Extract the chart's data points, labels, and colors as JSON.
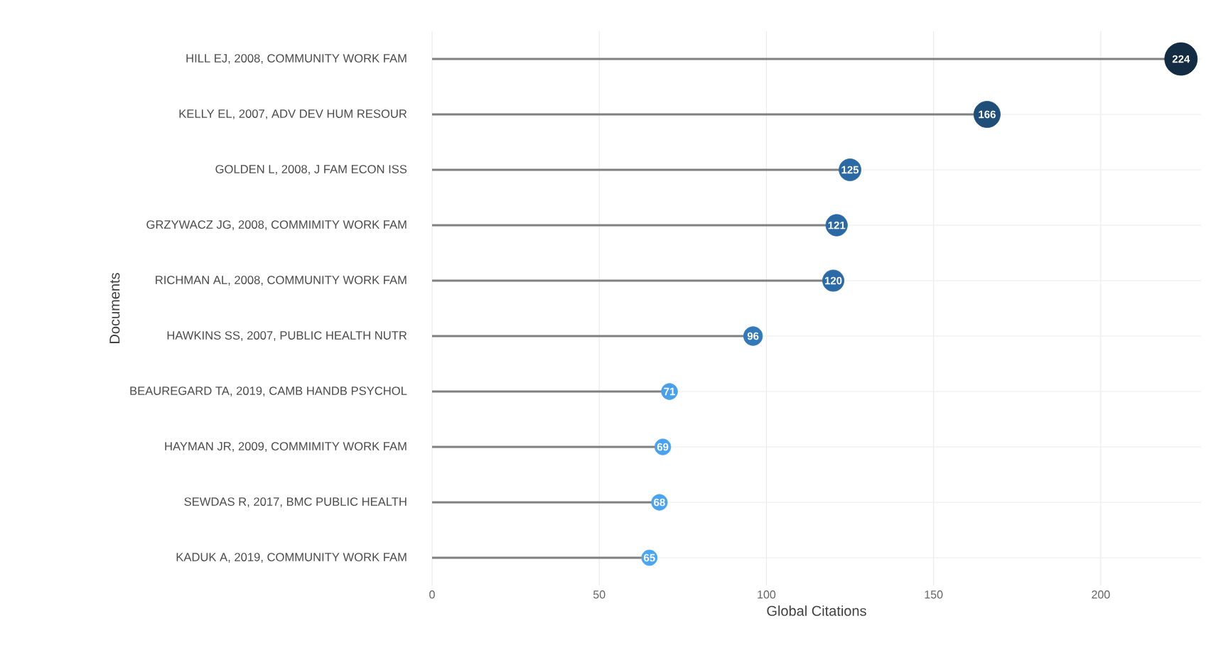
{
  "chart_data": {
    "type": "lollipop",
    "orientation": "horizontal",
    "xlabel": "Global Citations",
    "ylabel": "Documents",
    "categories": [
      "HILL EJ, 2008, COMMUNITY WORK FAM",
      "KELLY EL, 2007, ADV DEV HUM RESOUR",
      "GOLDEN L, 2008, J FAM ECON ISS",
      "GRZYWACZ JG, 2008, COMMIMITY WORK FAM",
      "RICHMAN AL, 2008, COMMUNITY WORK FAM",
      "HAWKINS SS, 2007, PUBLIC HEALTH NUTR",
      "BEAUREGARD TA, 2019, CAMB HANDB PSYCHOL",
      "HAYMAN JR, 2009, COMMIMITY WORK FAM",
      "SEWDAS R, 2017, BMC PUBLIC HEALTH",
      "KADUK A, 2019, COMMUNITY WORK FAM"
    ],
    "values": [
      224,
      166,
      125,
      121,
      120,
      96,
      71,
      69,
      68,
      65
    ],
    "colors": [
      "#132b43",
      "#1f4e79",
      "#2a69a4",
      "#2a69a4",
      "#2b6aa5",
      "#3378b8",
      "#4aa0e8",
      "#4aa2ec",
      "#4ba3ee",
      "#4ca5f0"
    ],
    "xlim": [
      0,
      230
    ],
    "xticks": [
      0,
      50,
      100,
      150,
      200
    ],
    "grid": true,
    "marker": "circle",
    "data_labels": true
  }
}
